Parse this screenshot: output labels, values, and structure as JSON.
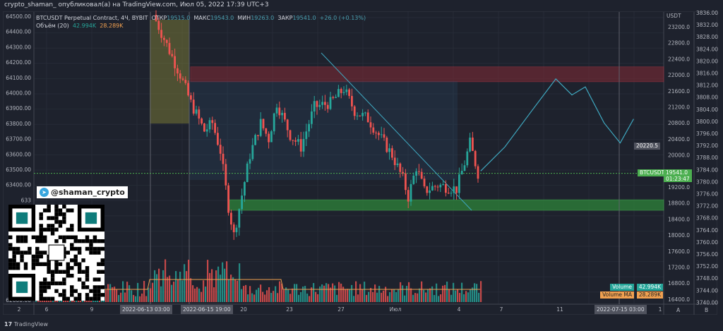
{
  "header": {
    "publisher": "crypto_shaman_ опубликовал(а) на TradingView.com, Июл 05, 2022 17:39 UTC+3"
  },
  "legend": {
    "symbol": "BTCUSDT Perpetual Contract, 4Ч, BYBIT",
    "open_label": "ОТКР",
    "open": "19515.0",
    "high_label": "МАКС",
    "high": "19543.0",
    "low_label": "МИН",
    "low": "19263.0",
    "close_label": "ЗАКР",
    "close": "19541.0",
    "change": "+26.0 (+0.13%)",
    "volume_label": "Объём (20)",
    "volume": "42.994K",
    "volume_ma": "28.289K"
  },
  "left_axis": [
    "64500.00",
    "64400.00",
    "64300.00",
    "64200.00",
    "64100.00",
    "64000.00",
    "63900.00",
    "63800.00",
    "63700.00",
    "63600.00",
    "63500.00",
    "63400.00",
    "633",
    "62600.00"
  ],
  "right_axis": {
    "unit": "USDT",
    "labels": [
      "23200.0",
      "22800.0",
      "22400.0",
      "22000.0",
      "21600.0",
      "21200.0",
      "20800.0",
      "20400.0",
      "20000.0",
      "19200.0",
      "18800.0",
      "18400.0",
      "18000.0",
      "17600.0",
      "17200.0",
      "16800.0",
      "16400.0"
    ],
    "marker": "20220.5",
    "price_tag": "BTCUSDT",
    "price": "19541.0",
    "countdown": "01:23:47",
    "vol_label": "Volume",
    "vol_value": "42.994K",
    "ma_label": "Volume MA",
    "ma_value": "28.289K",
    "scale_label": "A"
  },
  "right_axis2": {
    "labels": [
      "3836.00",
      "3832.00",
      "3828.00",
      "3824.00",
      "3820.00",
      "3816.00",
      "3812.00",
      "3808.00",
      "3804.00",
      "3800.00",
      "3796.00",
      "3792.00",
      "3788.00",
      "3784.00",
      "3780.00",
      "3776.00",
      "3772.00",
      "3768.00",
      "3764.00",
      "3760.00",
      "3756.00",
      "3752.00",
      "3748.00",
      "3744.00",
      "3740.00"
    ],
    "scale_label": "B"
  },
  "time_axis": {
    "labels": [
      "2",
      "6",
      "9",
      "20",
      "23",
      "27",
      "Июл",
      "4",
      "7",
      "11",
      "1"
    ],
    "badges": [
      "2022-06-13 03:00",
      "2022-06-15 19:00",
      "2022-07-15 03:00"
    ]
  },
  "watermark": {
    "telegram": "@shaman_crypto"
  },
  "footer": {
    "brand": "TradingView"
  },
  "colors": {
    "up": "#26a69a",
    "down": "#ef5350",
    "bg": "#1e222d",
    "resistance": "#7a2a35",
    "support": "#2e8b3a",
    "forecast": "#3fa8c0"
  },
  "chart_data": {
    "type": "candlestick",
    "ylabel": "USDT",
    "ylim": [
      16400,
      23400
    ],
    "path": [
      [
        0,
        23500
      ],
      [
        6,
        22600
      ],
      [
        10,
        22000
      ],
      [
        14,
        21300
      ],
      [
        19,
        20600
      ],
      [
        22,
        20800
      ],
      [
        25,
        20100
      ],
      [
        28,
        18700
      ],
      [
        30,
        18000
      ],
      [
        33,
        19000
      ],
      [
        36,
        20000
      ],
      [
        40,
        20800
      ],
      [
        43,
        20400
      ],
      [
        46,
        21300
      ],
      [
        51,
        20500
      ],
      [
        55,
        20200
      ],
      [
        60,
        21200
      ],
      [
        66,
        21300
      ],
      [
        71,
        21650
      ],
      [
        75,
        21100
      ],
      [
        80,
        20900
      ],
      [
        85,
        20400
      ],
      [
        89,
        20000
      ],
      [
        93,
        19400
      ],
      [
        95,
        18950
      ],
      [
        98,
        19700
      ],
      [
        101,
        19100
      ],
      [
        106,
        19250
      ],
      [
        113,
        19150
      ],
      [
        116,
        19800
      ],
      [
        118,
        20300
      ],
      [
        121,
        19541
      ]
    ],
    "forecast": [
      [
        121,
        19600
      ],
      [
        130,
        20200
      ],
      [
        140,
        21100
      ],
      [
        149,
        21900
      ],
      [
        155,
        21500
      ],
      [
        160,
        21700
      ],
      [
        167,
        20800
      ],
      [
        173,
        20300
      ],
      [
        178,
        20900
      ]
    ],
    "zones": {
      "resistance": [
        21830,
        22200
      ],
      "support": [
        18620,
        18880
      ]
    }
  }
}
